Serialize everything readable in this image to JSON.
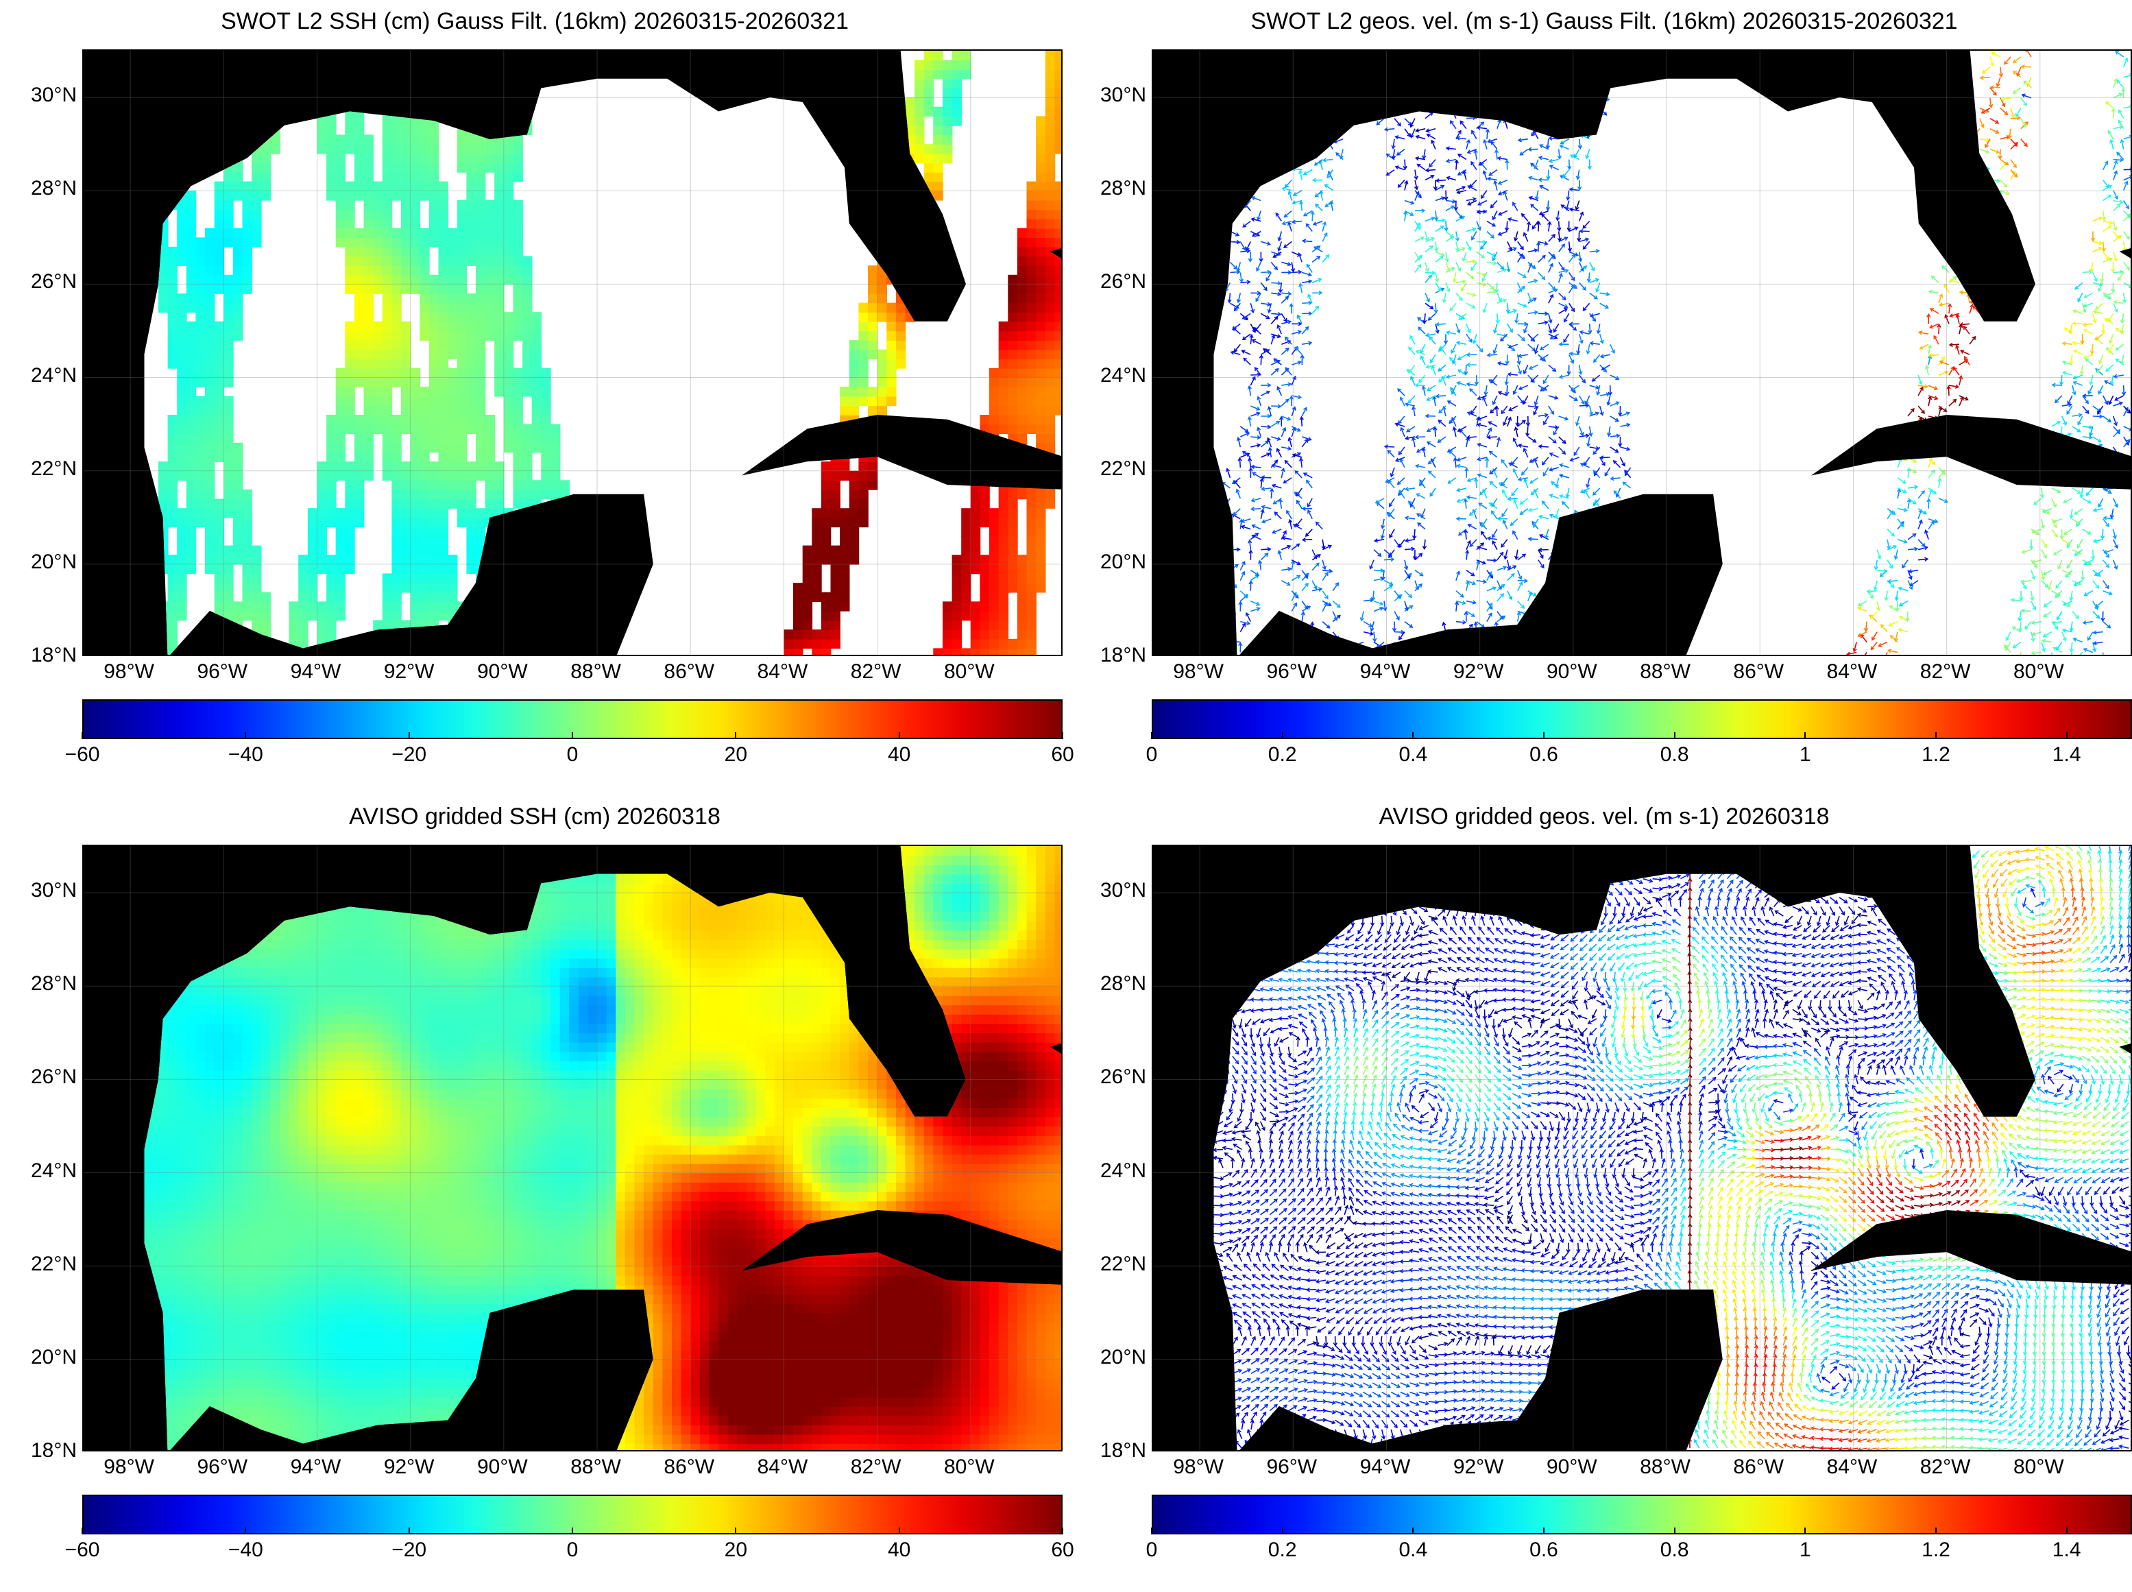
{
  "panels": [
    {
      "id": "swot-ssh",
      "title": "SWOT L2 SSH (cm) Gauss Filt. (16km) 20260315-20260321",
      "colorbar_ticks": [
        "−60",
        "−40",
        "−20",
        "0",
        "20",
        "40",
        "60"
      ],
      "colorbar_range": [
        -60,
        60
      ],
      "style": "swaths-ssh"
    },
    {
      "id": "swot-vel",
      "title": "SWOT L2 geos. vel. (m s-1) Gauss Filt. (16km) 20260315-20260321",
      "colorbar_ticks": [
        "0",
        "0.2",
        "0.4",
        "0.6",
        "0.8",
        "1",
        "1.2",
        "1.4"
      ],
      "colorbar_range": [
        0,
        1.5
      ],
      "style": "swaths-vel"
    },
    {
      "id": "aviso-ssh",
      "title": "AVISO gridded SSH (cm) 20260318",
      "colorbar_ticks": [
        "−60",
        "−40",
        "−20",
        "0",
        "20",
        "40",
        "60"
      ],
      "colorbar_range": [
        -60,
        60
      ],
      "style": "gridded-ssh"
    },
    {
      "id": "aviso-vel",
      "title": "AVISO gridded geos. vel. (m s-1)  20260318",
      "colorbar_ticks": [
        "0",
        "0.2",
        "0.4",
        "0.6",
        "0.8",
        "1",
        "1.2",
        "1.4"
      ],
      "colorbar_range": [
        0,
        1.5
      ],
      "style": "gridded-vel"
    }
  ],
  "axes": {
    "lat_labels": [
      "30°N",
      "28°N",
      "26°N",
      "24°N",
      "22°N",
      "20°N",
      "18°N"
    ],
    "lat_values": [
      30,
      28,
      26,
      24,
      22,
      20,
      18
    ],
    "lon_labels": [
      "98°W",
      "96°W",
      "94°W",
      "92°W",
      "90°W",
      "88°W",
      "86°W",
      "84°W",
      "82°W",
      "80°W"
    ],
    "lon_values": [
      -98,
      -96,
      -94,
      -92,
      -90,
      -88,
      -86,
      -84,
      -82,
      -80
    ],
    "lon_range": [
      -99,
      -78
    ],
    "lat_range": [
      18,
      31
    ],
    "grid": true
  },
  "colors": {
    "land": "#000000",
    "no_data": "#ffffff",
    "colormap": "jet"
  }
}
